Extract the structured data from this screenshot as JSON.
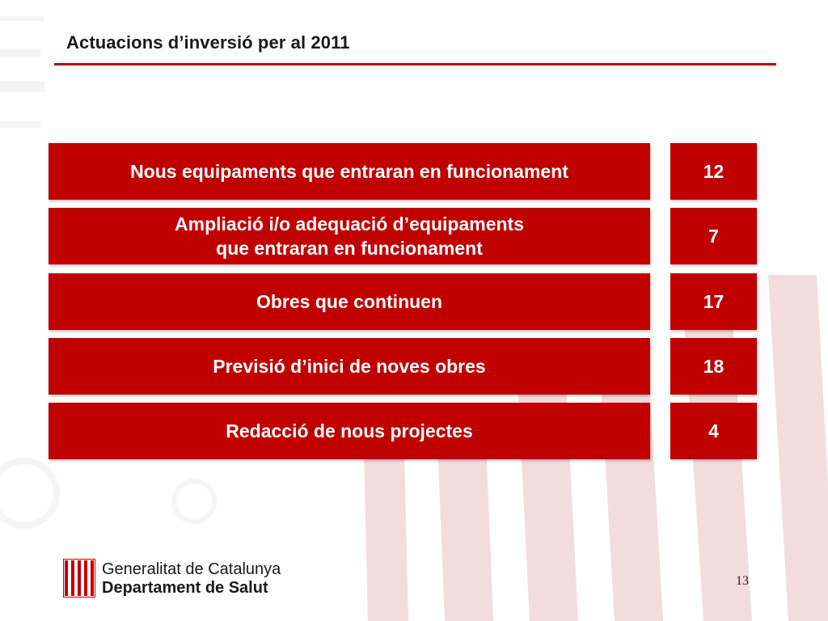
{
  "title": "Actuacions d’inversió per al 2011",
  "rows": [
    {
      "label": "Nous equipaments que entraran en funcionament",
      "value": "12"
    },
    {
      "label": "Ampliació i/o adequació d’equipaments\nque entraran en funcionament",
      "value": "7"
    },
    {
      "label": "Obres que continuen",
      "value": "17"
    },
    {
      "label": "Previsió d’inici de noves obres",
      "value": "18"
    },
    {
      "label": "Redacció de nous projectes",
      "value": "4"
    }
  ],
  "footer": {
    "organization": "Generalitat de Catalunya",
    "department": "Departament de Salut",
    "logo_icon": "generalitat-flag-icon"
  },
  "page_number": "13",
  "colors": {
    "accent": "#c00000",
    "text": "#1a1a1a",
    "watermark": "#f5e0e0"
  }
}
